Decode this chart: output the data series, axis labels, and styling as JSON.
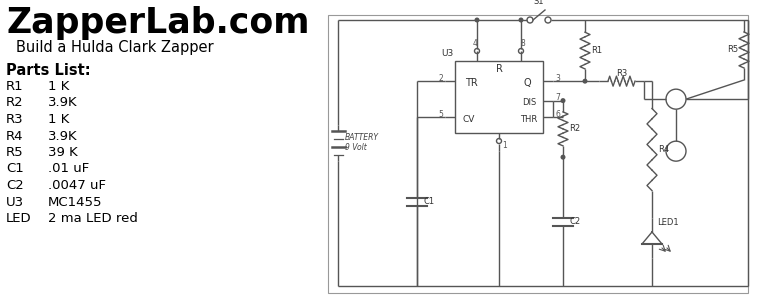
{
  "title": "ZapperLab.com",
  "subtitle": "Build a Hulda Clark Zapper",
  "parts_list_title": "Parts List:",
  "parts": [
    [
      "R1",
      "1 K"
    ],
    [
      "R2",
      "3.9K"
    ],
    [
      "R3",
      "1 K"
    ],
    [
      "R4",
      "3.9K"
    ],
    [
      "R5",
      "39 K"
    ],
    [
      "C1",
      ".01 uF"
    ],
    [
      "C2",
      ".0047 uF"
    ],
    [
      "U3",
      "MC1455"
    ],
    [
      "LED",
      "2 ma LED red"
    ]
  ],
  "bg_color": "#ffffff",
  "line_color": "#555555",
  "text_color": "#000000"
}
